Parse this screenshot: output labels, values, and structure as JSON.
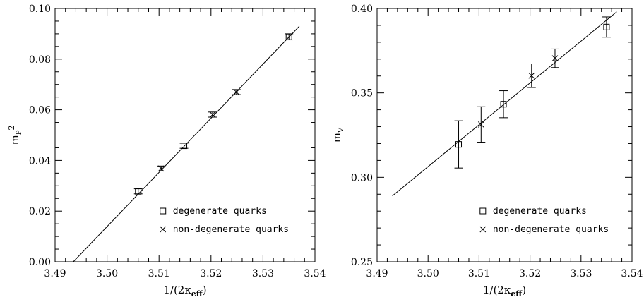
{
  "chart_data": [
    {
      "type": "scatter",
      "xlabel": "1/(2κeff)",
      "ylabel": "mP2",
      "xlim": [
        3.49,
        3.54
      ],
      "ylim": [
        0.0,
        0.1
      ],
      "xticks": [
        "3.49",
        "3.50",
        "3.51",
        "3.52",
        "3.53",
        "3.54"
      ],
      "yticks": [
        "0.00",
        "0.02",
        "0.04",
        "0.06",
        "0.08",
        "0.10"
      ],
      "legend_position": "lower-right",
      "series": [
        {
          "name": "degenerate quarks",
          "marker": "square",
          "x": [
            3.506,
            3.5148,
            3.535
          ],
          "y": [
            0.0278,
            0.0458,
            0.0888
          ],
          "yerr": [
            0.001,
            0.001,
            0.0012
          ]
        },
        {
          "name": "non-degenerate quarks",
          "marker": "x",
          "x": [
            3.5104,
            3.5203,
            3.5249
          ],
          "y": [
            0.0368,
            0.0581,
            0.067
          ],
          "yerr": [
            0.001,
            0.001,
            0.001
          ]
        }
      ],
      "fit_line": {
        "x": [
          3.4935,
          3.537
        ],
        "y": [
          0.0,
          0.093
        ]
      }
    },
    {
      "type": "scatter",
      "xlabel": "1/(2κeff)",
      "ylabel": "mV",
      "xlim": [
        3.49,
        3.54
      ],
      "ylim": [
        0.25,
        0.4
      ],
      "xticks": [
        "3.49",
        "3.50",
        "3.51",
        "3.52",
        "3.53",
        "3.54"
      ],
      "yticks": [
        "0.25",
        "0.30",
        "0.35",
        "0.40"
      ],
      "legend_position": "lower-right",
      "series": [
        {
          "name": "degenerate quarks",
          "marker": "square",
          "x": [
            3.506,
            3.5148,
            3.535
          ],
          "y": [
            0.3195,
            0.3433,
            0.389
          ],
          "yerr": [
            0.014,
            0.008,
            0.006
          ]
        },
        {
          "name": "non-degenerate quarks",
          "marker": "x",
          "x": [
            3.5104,
            3.5203,
            3.5249
          ],
          "y": [
            0.3313,
            0.3602,
            0.3705
          ],
          "yerr": [
            0.0105,
            0.007,
            0.0055
          ]
        }
      ],
      "fit_line": {
        "x": [
          3.493,
          3.537
        ],
        "y": [
          0.289,
          0.398
        ]
      }
    }
  ]
}
